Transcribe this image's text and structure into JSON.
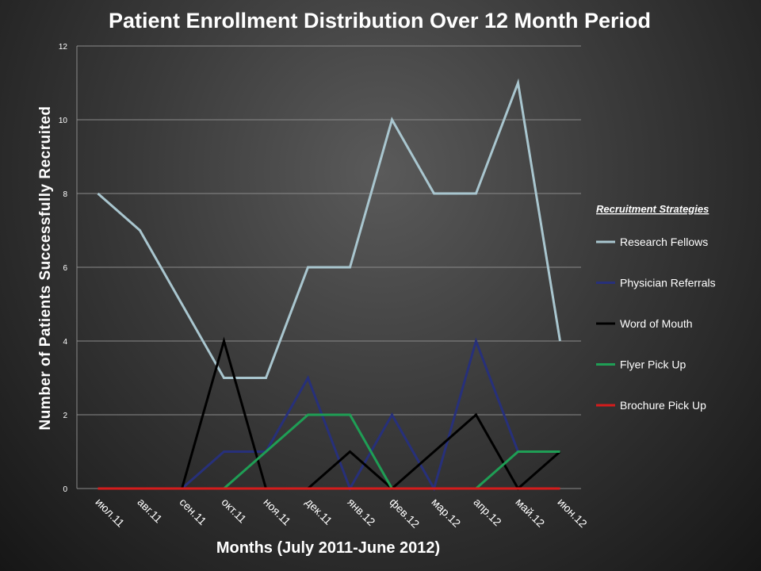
{
  "chart_data": {
    "type": "line",
    "title": "Patient Enrollment Distribution Over 12 Month Period",
    "xlabel": "Months (July 2011-June 2012)",
    "ylabel": "Number of Patients Successfully Recruited",
    "ylim": [
      0,
      12
    ],
    "yticks": [
      "0",
      "2",
      "4",
      "6",
      "8",
      "10",
      "12"
    ],
    "grid": true,
    "legend_title": "Recruitment Strategies",
    "legend_position": "right",
    "categories": [
      "июл.11",
      "авг.11",
      "сен.11",
      "окт.11",
      "ноя.11",
      "дек.11",
      "янв.12",
      "фев.12",
      "мар.12",
      "апр.12",
      "май.12",
      "июн.12"
    ],
    "series": [
      {
        "name": "Research Fellows",
        "color": "#a9c6cf",
        "values": [
          8,
          7,
          5,
          3,
          3,
          6,
          6,
          10,
          8,
          8,
          11,
          4
        ]
      },
      {
        "name": "Physician Referrals",
        "color": "#27307a",
        "values": [
          0,
          0,
          0,
          1,
          1,
          3,
          0,
          2,
          0,
          4,
          1,
          1
        ]
      },
      {
        "name": "Word of Mouth",
        "color": "#000000",
        "values": [
          0,
          0,
          0,
          4,
          0,
          0,
          1,
          0,
          1,
          2,
          0,
          1
        ]
      },
      {
        "name": "Flyer Pick Up",
        "color": "#1f9e55",
        "values": [
          0,
          0,
          0,
          0,
          1,
          2,
          2,
          0,
          0,
          0,
          1,
          1
        ]
      },
      {
        "name": "Brochure Pick Up",
        "color": "#d41c1c",
        "values": [
          0,
          0,
          0,
          0,
          0,
          0,
          0,
          0,
          0,
          0,
          0,
          0
        ]
      }
    ]
  }
}
